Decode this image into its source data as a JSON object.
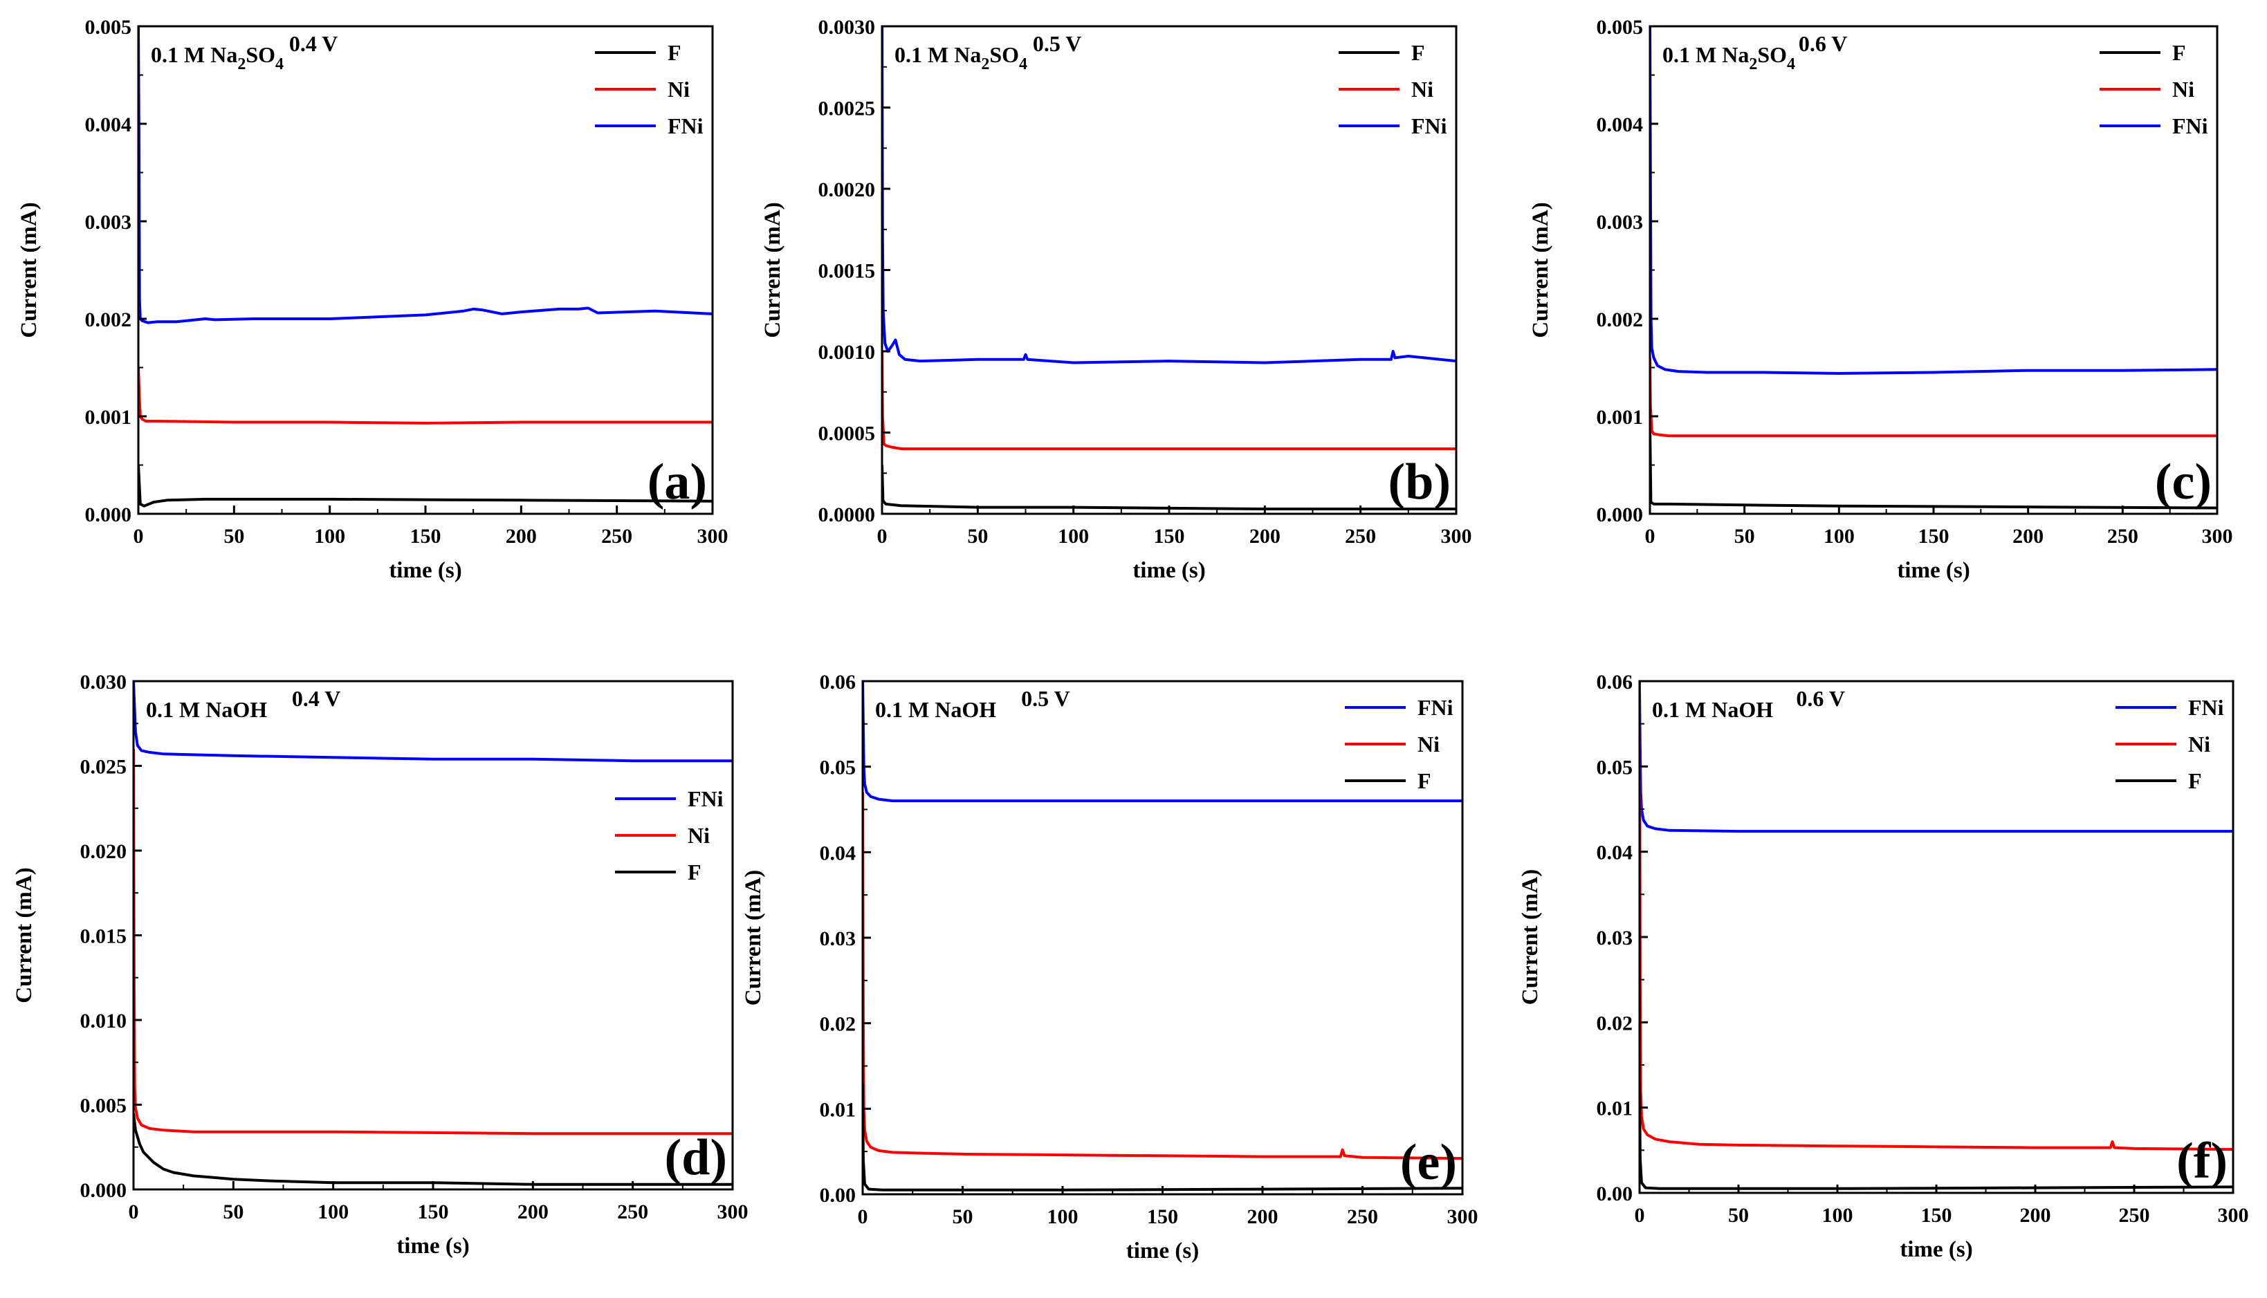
{
  "chart_data": [
    {
      "type": "line",
      "panel_label": "(a)",
      "electrolyte": {
        "base": "0.1 M Na",
        "sub1": "2",
        "mid": "SO",
        "sub2": "4"
      },
      "voltage": "0.4 V",
      "xlabel": "time (s)",
      "ylabel": "Current (mA)",
      "xlim": [
        0,
        300
      ],
      "ylim": [
        0,
        0.005
      ],
      "xticks": [
        "0",
        "50",
        "100",
        "150",
        "200",
        "250",
        "300"
      ],
      "yticks": [
        "0.000",
        "0.001",
        "0.002",
        "0.003",
        "0.004",
        "0.005"
      ],
      "legend_position": "top-right",
      "series": [
        {
          "name": "F",
          "color": "#000000",
          "x": [
            0,
            1,
            3,
            8,
            15,
            35,
            100,
            200,
            300
          ],
          "y": [
            0.0005,
            0.0001,
            8e-05,
            0.00012,
            0.00014,
            0.00015,
            0.00015,
            0.00014,
            0.00013
          ]
        },
        {
          "name": "Ni",
          "color": "#ff0000",
          "x": [
            0,
            0.5,
            1,
            2,
            4,
            10,
            50,
            100,
            150,
            200,
            250,
            300
          ],
          "y": [
            0.0015,
            0.0012,
            0.001,
            0.00097,
            0.00095,
            0.00095,
            0.00094,
            0.00094,
            0.00093,
            0.00094,
            0.00094,
            0.00094
          ]
        },
        {
          "name": "FNi",
          "color": "#0000ff",
          "x": [
            0,
            0.3,
            0.6,
            1,
            2,
            5,
            10,
            20,
            35,
            40,
            60,
            100,
            150,
            170,
            175,
            180,
            190,
            200,
            220,
            230,
            235,
            240,
            270,
            300
          ],
          "y": [
            0.005,
            0.004,
            0.0022,
            0.002,
            0.00198,
            0.00196,
            0.00197,
            0.00197,
            0.002,
            0.00199,
            0.002,
            0.002,
            0.00204,
            0.00208,
            0.0021,
            0.00209,
            0.00205,
            0.00207,
            0.0021,
            0.0021,
            0.00211,
            0.00206,
            0.00208,
            0.00205
          ]
        }
      ]
    },
    {
      "type": "line",
      "panel_label": "(b)",
      "electrolyte": {
        "base": "0.1 M Na",
        "sub1": "2",
        "mid": "SO",
        "sub2": "4"
      },
      "voltage": "0.5 V",
      "xlabel": "time (s)",
      "ylabel": "Current (mA)",
      "xlim": [
        0,
        300
      ],
      "ylim": [
        0,
        0.003
      ],
      "xticks": [
        "0",
        "50",
        "100",
        "150",
        "200",
        "250",
        "300"
      ],
      "yticks": [
        "0.0000",
        "0.0005",
        "0.0010",
        "0.0015",
        "0.0020",
        "0.0025",
        "0.0030"
      ],
      "legend_position": "top-right",
      "series": [
        {
          "name": "F",
          "color": "#000000",
          "x": [
            0,
            0.5,
            2,
            10,
            50,
            100,
            200,
            300
          ],
          "y": [
            0.0003,
            8e-05,
            6e-05,
            5e-05,
            4e-05,
            4e-05,
            3e-05,
            3e-05
          ]
        },
        {
          "name": "Ni",
          "color": "#ff0000",
          "x": [
            0,
            0.3,
            1,
            2,
            5,
            10,
            50,
            100,
            200,
            300
          ],
          "y": [
            0.001,
            0.0006,
            0.00043,
            0.00042,
            0.00041,
            0.0004,
            0.0004,
            0.0004,
            0.0004,
            0.0004
          ]
        },
        {
          "name": "FNi",
          "color": "#0000ff",
          "x": [
            0,
            0.3,
            0.6,
            1.5,
            3,
            5,
            7,
            9,
            12,
            20,
            50,
            74,
            75,
            76,
            100,
            150,
            200,
            250,
            266,
            267,
            268,
            275,
            300
          ],
          "y": [
            0.003,
            0.0017,
            0.00125,
            0.00105,
            0.001,
            0.00103,
            0.00107,
            0.00098,
            0.00095,
            0.00094,
            0.00095,
            0.00095,
            0.00098,
            0.00095,
            0.00093,
            0.00094,
            0.00093,
            0.00095,
            0.00095,
            0.001,
            0.00096,
            0.00097,
            0.00094
          ]
        }
      ]
    },
    {
      "type": "line",
      "panel_label": "(c)",
      "electrolyte": {
        "base": "0.1 M Na",
        "sub1": "2",
        "mid": "SO",
        "sub2": "4"
      },
      "voltage": "0.6 V",
      "xlabel": "time (s)",
      "ylabel": "Current (mA)",
      "xlim": [
        0,
        300
      ],
      "ylim": [
        0,
        0.005
      ],
      "xticks": [
        "0",
        "50",
        "100",
        "150",
        "200",
        "250",
        "300"
      ],
      "yticks": [
        "0.000",
        "0.001",
        "0.002",
        "0.003",
        "0.004",
        "0.005"
      ],
      "legend_position": "top-right",
      "series": [
        {
          "name": "F",
          "color": "#000000",
          "x": [
            0,
            0.5,
            2,
            10,
            50,
            100,
            200,
            300
          ],
          "y": [
            0.0009,
            0.00012,
            0.0001,
            0.0001,
            9e-05,
            8e-05,
            7e-05,
            6e-05
          ]
        },
        {
          "name": "Ni",
          "color": "#ff0000",
          "x": [
            0,
            0.3,
            1,
            2,
            5,
            10,
            50,
            100,
            200,
            300
          ],
          "y": [
            0.0016,
            0.0011,
            0.00085,
            0.00082,
            0.00081,
            0.0008,
            0.0008,
            0.0008,
            0.0008,
            0.0008
          ]
        },
        {
          "name": "FNi",
          "color": "#0000ff",
          "x": [
            0,
            0.3,
            0.6,
            1,
            2,
            4,
            8,
            15,
            30,
            60,
            100,
            150,
            200,
            250,
            300
          ],
          "y": [
            0.005,
            0.0035,
            0.002,
            0.0017,
            0.0016,
            0.00152,
            0.00148,
            0.00146,
            0.00145,
            0.00145,
            0.00144,
            0.00145,
            0.00147,
            0.00147,
            0.00148
          ]
        }
      ]
    },
    {
      "type": "line",
      "panel_label": "(d)",
      "electrolyte": {
        "base": "0.1 M NaOH",
        "sub1": "",
        "mid": "",
        "sub2": ""
      },
      "voltage": "0.4 V",
      "xlabel": "time (s)",
      "ylabel": "Current (mA)",
      "xlim": [
        0,
        300
      ],
      "ylim": [
        0,
        0.03
      ],
      "xticks": [
        "0",
        "50",
        "100",
        "150",
        "200",
        "250",
        "300"
      ],
      "yticks": [
        "0.000",
        "0.005",
        "0.010",
        "0.015",
        "0.020",
        "0.025",
        "0.030"
      ],
      "legend_position": "center-right",
      "series": [
        {
          "name": "FNi",
          "color": "#0000ff",
          "x": [
            0,
            0.3,
            1,
            2,
            4,
            8,
            15,
            50,
            100,
            150,
            200,
            250,
            300
          ],
          "y": [
            0.03,
            0.029,
            0.027,
            0.0262,
            0.0259,
            0.0258,
            0.0257,
            0.0256,
            0.0255,
            0.0254,
            0.0254,
            0.0253,
            0.0253
          ]
        },
        {
          "name": "Ni",
          "color": "#ff0000",
          "x": [
            0,
            0.3,
            0.6,
            1,
            2,
            4,
            8,
            15,
            30,
            50,
            100,
            200,
            300
          ],
          "y": [
            0.026,
            0.012,
            0.006,
            0.0048,
            0.0042,
            0.0038,
            0.0036,
            0.0035,
            0.0034,
            0.0034,
            0.0034,
            0.0033,
            0.0033
          ]
        },
        {
          "name": "F",
          "color": "#000000",
          "x": [
            0,
            1,
            3,
            5,
            10,
            15,
            20,
            30,
            40,
            50,
            70,
            100,
            150,
            200,
            250,
            300
          ],
          "y": [
            0.0045,
            0.0035,
            0.0027,
            0.0022,
            0.0016,
            0.0012,
            0.001,
            0.0008,
            0.0007,
            0.0006,
            0.0005,
            0.0004,
            0.0004,
            0.0003,
            0.0003,
            0.0003
          ]
        }
      ]
    },
    {
      "type": "line",
      "panel_label": "(e)",
      "electrolyte": {
        "base": "0.1 M NaOH",
        "sub1": "",
        "mid": "",
        "sub2": ""
      },
      "voltage": "0.5 V",
      "xlabel": "time (s)",
      "ylabel": "Current (mA)",
      "xlim": [
        0,
        300
      ],
      "ylim": [
        0,
        0.06
      ],
      "xticks": [
        "0",
        "50",
        "100",
        "150",
        "200",
        "250",
        "300"
      ],
      "yticks": [
        "0.00",
        "0.01",
        "0.02",
        "0.03",
        "0.04",
        "0.05",
        "0.06"
      ],
      "legend_position": "top-right",
      "series": [
        {
          "name": "FNi",
          "color": "#0000ff",
          "x": [
            0,
            0.3,
            0.6,
            1,
            2,
            4,
            8,
            15,
            50,
            100,
            200,
            300
          ],
          "y": [
            0.06,
            0.055,
            0.05,
            0.048,
            0.047,
            0.0465,
            0.0462,
            0.046,
            0.046,
            0.046,
            0.046,
            0.046
          ]
        },
        {
          "name": "Ni",
          "color": "#ff0000",
          "x": [
            0,
            0.3,
            0.6,
            1,
            2,
            4,
            8,
            15,
            30,
            50,
            100,
            150,
            200,
            239,
            240,
            241,
            250,
            300
          ],
          "y": [
            0.047,
            0.02,
            0.01,
            0.0075,
            0.0062,
            0.0055,
            0.0051,
            0.0049,
            0.0048,
            0.0047,
            0.0046,
            0.0045,
            0.0044,
            0.0044,
            0.0052,
            0.0045,
            0.0043,
            0.0042
          ]
        },
        {
          "name": "F",
          "color": "#000000",
          "x": [
            0,
            0.3,
            1,
            3,
            10,
            50,
            100,
            200,
            300
          ],
          "y": [
            0.013,
            0.004,
            0.0012,
            0.0006,
            0.0005,
            0.0005,
            0.0005,
            0.0006,
            0.0007
          ]
        }
      ]
    },
    {
      "type": "line",
      "panel_label": "(f)",
      "electrolyte": {
        "base": "0.1 M NaOH",
        "sub1": "",
        "mid": "",
        "sub2": ""
      },
      "voltage": "0.6 V",
      "xlabel": "time (s)",
      "ylabel": "Current (mA)",
      "xlim": [
        0,
        300
      ],
      "ylim": [
        0,
        0.06
      ],
      "xticks": [
        "0",
        "50",
        "100",
        "150",
        "200",
        "250",
        "300"
      ],
      "yticks": [
        "0.00",
        "0.01",
        "0.02",
        "0.03",
        "0.04",
        "0.05",
        "0.06"
      ],
      "legend_position": "top-right",
      "series": [
        {
          "name": "FNi",
          "color": "#0000ff",
          "x": [
            0,
            0.3,
            0.6,
            1,
            2,
            4,
            8,
            15,
            50,
            100,
            200,
            300
          ],
          "y": [
            0.059,
            0.052,
            0.047,
            0.045,
            0.0437,
            0.043,
            0.0427,
            0.0425,
            0.0424,
            0.0424,
            0.0424,
            0.0424
          ]
        },
        {
          "name": "Ni",
          "color": "#ff0000",
          "x": [
            0,
            0.3,
            0.6,
            1,
            2,
            4,
            8,
            15,
            30,
            50,
            100,
            200,
            238,
            239,
            240,
            250,
            300
          ],
          "y": [
            0.06,
            0.025,
            0.012,
            0.009,
            0.0075,
            0.0068,
            0.0063,
            0.006,
            0.0057,
            0.0056,
            0.0055,
            0.0053,
            0.0053,
            0.006,
            0.0053,
            0.0052,
            0.0051
          ]
        },
        {
          "name": "F",
          "color": "#000000",
          "x": [
            0,
            0.3,
            1,
            3,
            10,
            50,
            100,
            200,
            300
          ],
          "y": [
            0.013,
            0.004,
            0.0012,
            0.0006,
            0.0005,
            0.0005,
            0.0005,
            0.0006,
            0.0007
          ]
        }
      ]
    }
  ]
}
